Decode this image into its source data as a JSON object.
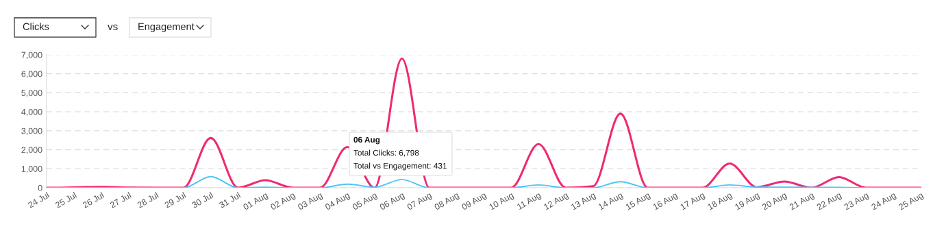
{
  "chart_data": {
    "type": "line",
    "categories": [
      "24 Jul",
      "25 Jul",
      "26 Jul",
      "27 Jul",
      "28 Jul",
      "29 Jul",
      "30 Jul",
      "31 Jul",
      "01 Aug",
      "02 Aug",
      "03 Aug",
      "04 Aug",
      "05 Aug",
      "06 Aug",
      "07 Aug",
      "08 Aug",
      "09 Aug",
      "10 Aug",
      "11 Aug",
      "12 Aug",
      "13 Aug",
      "14 Aug",
      "15 Aug",
      "16 Aug",
      "17 Aug",
      "18 Aug",
      "19 Aug",
      "20 Aug",
      "21 Aug",
      "22 Aug",
      "23 Aug",
      "24 Aug",
      "25 Aug"
    ],
    "series": [
      {
        "color": "#4fc3f7",
        "values": [
          0,
          0,
          0,
          0,
          0,
          0,
          590,
          0,
          30,
          0,
          0,
          190,
          30,
          431,
          0,
          0,
          0,
          0,
          150,
          0,
          0,
          320,
          0,
          0,
          0,
          150,
          40,
          30,
          20,
          20,
          0,
          0,
          0
        ]
      },
      {
        "color": "#ee2a72",
        "values": [
          0,
          20,
          50,
          10,
          0,
          0,
          2620,
          0,
          400,
          0,
          0,
          2150,
          0,
          6798,
          0,
          0,
          0,
          0,
          2300,
          0,
          80,
          3900,
          0,
          0,
          0,
          1270,
          30,
          330,
          0,
          560,
          0,
          0,
          0
        ]
      }
    ],
    "ylim": [
      0,
      7000
    ],
    "yticks": [
      {
        "value": 0,
        "label": "0"
      },
      {
        "value": 1000,
        "label": "1,000"
      },
      {
        "value": 2000,
        "label": "2,000"
      },
      {
        "value": 3000,
        "label": "3,000"
      },
      {
        "value": 4000,
        "label": "4,000"
      },
      {
        "value": 5000,
        "label": "5,000"
      },
      {
        "value": 6000,
        "label": "6,000"
      },
      {
        "value": 7000,
        "label": "7,000"
      }
    ],
    "grid": "y",
    "legend": false,
    "marker": "none",
    "line_style": "solid",
    "annotations": [
      "Clicks",
      "vs",
      "Engagement",
      "06 Aug",
      "Total Clicks: 6,798",
      "Total vs Engagement: 431"
    ]
  }
}
